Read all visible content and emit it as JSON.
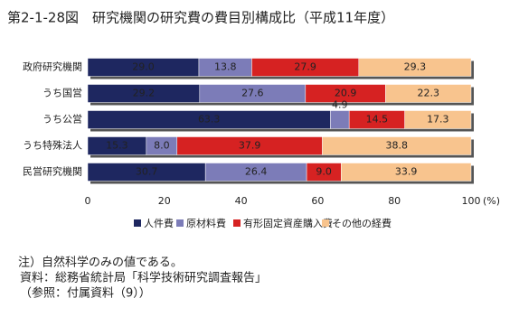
{
  "chart_data": {
    "type": "stacked-bar-horizontal",
    "title": "第2-1-28図　研究機関の研究費の費目別構成比（平成11年度）",
    "categories": [
      "政府研究機関",
      "うち国営",
      "うち公営",
      "うち特殊法人",
      "民営研究機関"
    ],
    "series": [
      {
        "name": "人件費",
        "color": "#1e2760",
        "values": [
          29.0,
          29.2,
          63.3,
          15.3,
          30.7
        ],
        "value_labels": [
          "29.0",
          "29.2",
          "63.3",
          "15.3",
          "30.7"
        ]
      },
      {
        "name": "原材料費",
        "color": "#7c7cb8",
        "values": [
          13.8,
          27.6,
          4.9,
          8.0,
          26.4
        ],
        "value_labels": [
          "13.8",
          "27.6",
          "4.9",
          "8.0",
          "26.4"
        ]
      },
      {
        "name": "有形固定資産購入費",
        "color": "#d62222",
        "values": [
          27.9,
          20.9,
          14.5,
          37.9,
          9.0
        ],
        "value_labels": [
          "27.9",
          "20.9",
          "14.5",
          "37.9",
          "9.0"
        ]
      },
      {
        "name": "その他の経費",
        "color": "#f8c48e",
        "values": [
          29.3,
          22.3,
          17.3,
          38.8,
          33.9
        ],
        "value_labels": [
          "29.3",
          "22.3",
          "17.3",
          "38.8",
          "33.9"
        ]
      }
    ],
    "xlim": [
      0,
      100
    ],
    "xticks": [
      0,
      20,
      40,
      60,
      80,
      100
    ],
    "xlabel": "(%)",
    "notes": [
      "注）自然科学のみの値である。",
      "資料：総務省統計局「科学技術研究調査報告」",
      "（参照：付属資料（9））"
    ]
  }
}
